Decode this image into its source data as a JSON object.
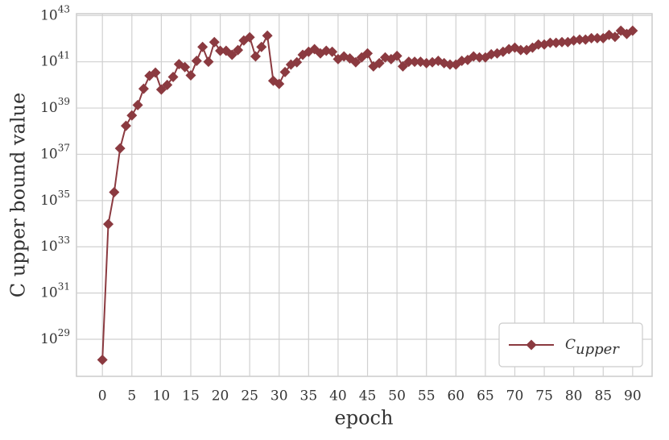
{
  "chart_data": {
    "type": "line",
    "x_label": "epoch",
    "y_label": "C upper bound value",
    "x": [
      0,
      1,
      2,
      3,
      4,
      5,
      6,
      7,
      8,
      9,
      10,
      11,
      12,
      13,
      14,
      15,
      16,
      17,
      18,
      19,
      20,
      21,
      22,
      23,
      24,
      25,
      26,
      27,
      28,
      29,
      30,
      31,
      32,
      33,
      34,
      35,
      36,
      37,
      38,
      39,
      40,
      41,
      42,
      43,
      44,
      45,
      46,
      47,
      48,
      49,
      50,
      51,
      52,
      53,
      54,
      55,
      56,
      57,
      58,
      59,
      60,
      61,
      62,
      63,
      64,
      65,
      66,
      67,
      68,
      69,
      70,
      71,
      72,
      73,
      74,
      75,
      76,
      77,
      78,
      79,
      80,
      81,
      82,
      83,
      84,
      85,
      86,
      87,
      88,
      89,
      90
    ],
    "series": [
      {
        "name": "C_upper",
        "color": "#8b3a40",
        "values": [
          1.3e+28,
          9.5e+33,
          2.3e+35,
          1.8e+37,
          1.7e+38,
          4.8e+38,
          1.35e+39,
          6.8e+39,
          2.5e+40,
          3.4e+40,
          6.3e+39,
          1e+40,
          2.2e+40,
          7.9e+40,
          5.9e+40,
          2.6e+40,
          1.1e+41,
          4.4e+41,
          1e+41,
          7.1e+41,
          3e+41,
          3e+41,
          2e+41,
          3.2e+41,
          8.3e+41,
          1.15e+42,
          1.7e+41,
          4.4e+41,
          1.35e+42,
          1.5e+40,
          1.1e+40,
          3.6e+40,
          7.6e+40,
          9.5e+40,
          2e+41,
          2.7e+41,
          3.5e+41,
          2.3e+41,
          3e+41,
          2.7e+41,
          1.3e+41,
          1.7e+41,
          1.4e+41,
          9.5e+40,
          1.55e+41,
          2.3e+41,
          6.3e+40,
          8.7e+40,
          1.55e+41,
          1.3e+41,
          1.8e+41,
          6.3e+40,
          1e+41,
          1e+41,
          1e+41,
          8.7e+40,
          9.5e+40,
          1.1e+41,
          8.7e+40,
          7.6e+40,
          7.6e+40,
          1.1e+41,
          1.2e+41,
          1.7e+41,
          1.55e+41,
          1.55e+41,
          2.1e+41,
          2.3e+41,
          2.7e+41,
          3.5e+41,
          4.1e+41,
          3.2e+41,
          3.2e+41,
          4.1e+41,
          5.6e+41,
          5.6e+41,
          6.6e+41,
          6.6e+41,
          7.1e+41,
          7.1e+41,
          8.3e+41,
          9.1e+41,
          9.1e+41,
          1.05e+42,
          1.05e+42,
          1.05e+42,
          1.45e+42,
          1.2e+42,
          2.2e+42,
          1.6e+42,
          2.2e+42
        ]
      }
    ],
    "xlim": [
      -4.4,
      93.3
    ],
    "xticks": [
      0,
      5,
      10,
      15,
      20,
      25,
      30,
      35,
      40,
      45,
      50,
      55,
      60,
      65,
      70,
      75,
      80,
      85,
      90
    ],
    "ylim": [
      2.5e+27,
      1.2e+43
    ],
    "y_scale": "log",
    "yticks": [
      {
        "value": 1e+29,
        "label": "10^29"
      },
      {
        "value": 1e+31,
        "label": "10^31"
      },
      {
        "value": 1e+33,
        "label": "10^33"
      },
      {
        "value": 1e+35,
        "label": "10^35"
      },
      {
        "value": 1e+37,
        "label": "10^37"
      },
      {
        "value": 1e+39,
        "label": "10^39"
      },
      {
        "value": 1e+41,
        "label": "10^41"
      },
      {
        "value": 1e+43,
        "label": "10^43"
      }
    ],
    "grid": true,
    "legend": "lower right"
  }
}
